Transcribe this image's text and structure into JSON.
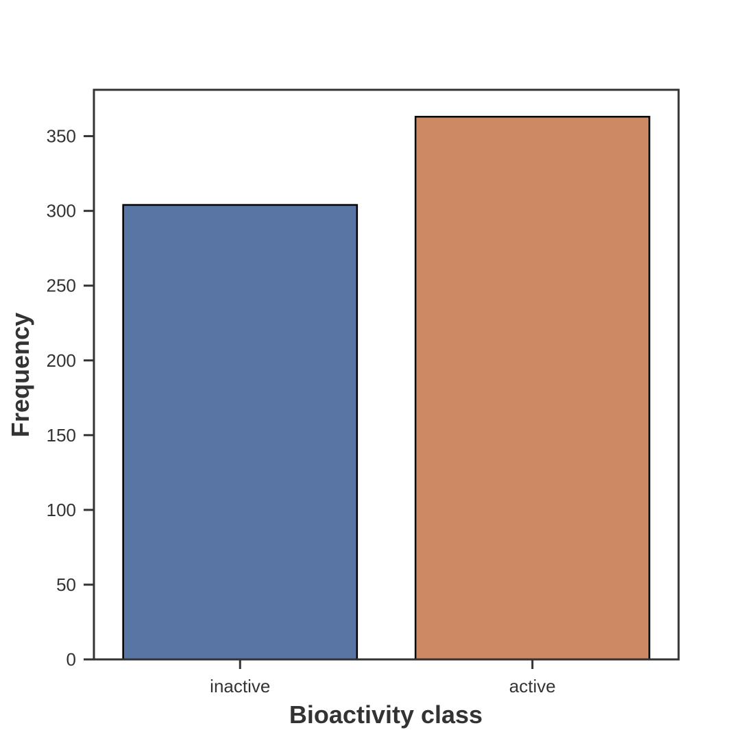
{
  "chart_data": {
    "type": "bar",
    "title": "",
    "xlabel": "Bioactivity class",
    "ylabel": "Frequency",
    "categories": [
      "inactive",
      "active"
    ],
    "values": [
      304,
      363
    ],
    "ylim": [
      0,
      381
    ],
    "yticks": [
      0,
      50,
      100,
      150,
      200,
      250,
      300,
      350
    ],
    "grid": false,
    "colors": {
      "bars": [
        "#5875a4",
        "#cc8963"
      ],
      "bar_edge": "#000000",
      "axes": "#333333",
      "text": "#333333",
      "background": "#ffffff"
    }
  }
}
